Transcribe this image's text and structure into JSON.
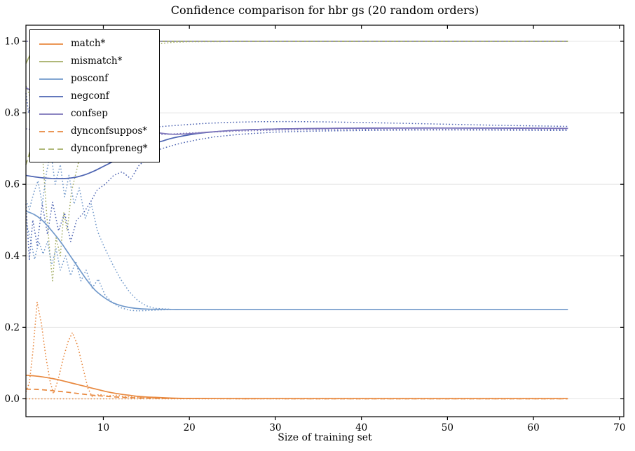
{
  "chart_data": {
    "type": "line",
    "title": "Confidence comparison for hbr gs (20 random orders)",
    "xlabel": "Size of training set",
    "ylabel": "",
    "xlim": [
      1,
      70.5
    ],
    "ylim": [
      -0.05,
      1.045
    ],
    "xticks": [
      10,
      20,
      30,
      40,
      50,
      60,
      70
    ],
    "xtick_labels": [
      "10",
      "20",
      "30",
      "40",
      "50",
      "60",
      "70"
    ],
    "yticks": [
      0.0,
      0.2,
      0.4,
      0.6,
      0.8,
      1.0
    ],
    "ytick_labels": [
      "0.0",
      "0.2",
      "0.4",
      "0.6",
      "0.8",
      "1.0"
    ],
    "grid": "horizontal",
    "gridline_color": "#e4e4e4",
    "axis_color": "#000000",
    "legend_position": "upper-left",
    "colors": {
      "orange": "#e8883e",
      "olive": "#a4ae66",
      "lightblue": "#7199cb",
      "blue": "#4d64b2",
      "purple": "#7d74ba"
    },
    "legend": [
      {
        "key": "match",
        "label": "match*",
        "color": "#e8883e",
        "dash": ""
      },
      {
        "key": "mismatch",
        "label": "mismatch*",
        "color": "#a4ae66",
        "dash": ""
      },
      {
        "key": "posconf",
        "label": "posconf",
        "color": "#7199cb",
        "dash": ""
      },
      {
        "key": "negconf",
        "label": "negconf",
        "color": "#4d64b2",
        "dash": ""
      },
      {
        "key": "confsep",
        "label": "confsep",
        "color": "#7d74ba",
        "dash": ""
      },
      {
        "key": "dynconfsuppos",
        "label": "dynconfsuppos*",
        "color": "#e8883e",
        "dash": "7 4.5"
      },
      {
        "key": "dynconfpreneg",
        "label": "dynconfpreneg*",
        "color": "#a4ae66",
        "dash": "7 4.5"
      }
    ],
    "series": [
      {
        "id": "match-band-lo",
        "color": "#e8883e",
        "dash": "1.6 2.8",
        "width": 1.5,
        "smooth": false,
        "x": [
          1,
          10,
          20,
          30,
          40,
          50,
          64
        ],
        "y": [
          0.0,
          0.0,
          0.0,
          0.0,
          0.0,
          0.0,
          0.0
        ]
      },
      {
        "id": "match-band-hi",
        "color": "#e8883e",
        "dash": "1.6 2.8",
        "width": 1.5,
        "smooth": false,
        "x": [
          1,
          1.4,
          1.8,
          2.3,
          2.8,
          3.3,
          3.8,
          4.2,
          4.7,
          5.3,
          5.9,
          6.4,
          7.0,
          7.6,
          8.2,
          8.7,
          9.5,
          10.5,
          11.5,
          12.5,
          14,
          16,
          20,
          30,
          40,
          50,
          64
        ],
        "y": [
          0.02,
          0.045,
          0.13,
          0.27,
          0.21,
          0.12,
          0.05,
          0.014,
          0.05,
          0.11,
          0.16,
          0.185,
          0.15,
          0.09,
          0.03,
          0.006,
          0.012,
          0.008,
          0.01,
          0.006,
          0.004,
          0.002,
          0.001,
          0.001,
          0.001,
          0.001,
          0.001
        ]
      },
      {
        "id": "mismatch-band-lo",
        "color": "#a4ae66",
        "dash": "1.6 2.8",
        "width": 1.5,
        "smooth": false,
        "x": [
          1,
          1.5,
          2,
          2.5,
          3,
          3.4,
          3.8,
          4.1,
          4.5,
          5.0,
          5.4,
          5.8,
          6.3,
          7.0,
          7.7,
          8.5,
          9.3,
          10,
          11,
          12,
          13,
          14,
          16,
          18,
          20,
          30,
          40,
          50,
          64
        ],
        "y": [
          0.875,
          0.845,
          0.815,
          0.74,
          0.66,
          0.52,
          0.4,
          0.33,
          0.45,
          0.4,
          0.52,
          0.47,
          0.58,
          0.65,
          0.72,
          0.79,
          0.85,
          0.895,
          0.935,
          0.958,
          0.972,
          0.982,
          0.992,
          0.997,
          0.999,
          1.0,
          1.0,
          1.0,
          1.0
        ]
      },
      {
        "id": "posconf-band-hi",
        "color": "#7199cb",
        "dash": "1.6 2.8",
        "width": 1.5,
        "smooth": false,
        "x": [
          1,
          1.4,
          1.9,
          2.4,
          2.9,
          3.4,
          3.9,
          4.4,
          5.0,
          5.5,
          6.0,
          6.6,
          7.2,
          7.9,
          8.6,
          9.3,
          10,
          11,
          12,
          13,
          14,
          15,
          16,
          18,
          20,
          64
        ],
        "y": [
          0.555,
          0.53,
          0.575,
          0.61,
          0.545,
          0.635,
          0.69,
          0.6,
          0.655,
          0.565,
          0.625,
          0.545,
          0.59,
          0.505,
          0.545,
          0.47,
          0.43,
          0.38,
          0.335,
          0.3,
          0.275,
          0.26,
          0.253,
          0.25,
          0.25,
          0.25
        ]
      },
      {
        "id": "posconf-band-lo",
        "color": "#7199cb",
        "dash": "1.6 2.8",
        "width": 1.5,
        "smooth": false,
        "x": [
          1,
          1.5,
          2.0,
          2.5,
          3.0,
          3.5,
          4.0,
          4.5,
          5.0,
          5.6,
          6.2,
          6.8,
          7.4,
          8.0,
          8.7,
          9.4,
          10.2,
          11,
          12,
          13,
          14,
          15,
          16,
          18,
          20,
          64
        ],
        "y": [
          0.495,
          0.45,
          0.39,
          0.44,
          0.405,
          0.44,
          0.375,
          0.42,
          0.36,
          0.4,
          0.345,
          0.385,
          0.33,
          0.36,
          0.31,
          0.335,
          0.29,
          0.27,
          0.255,
          0.248,
          0.246,
          0.247,
          0.248,
          0.25,
          0.25,
          0.25
        ]
      },
      {
        "id": "negconf-band-hi",
        "color": "#4d64b2",
        "dash": "1.6 2.8",
        "width": 1.5,
        "smooth": false,
        "x": [
          1,
          1.3,
          1.7,
          2.2,
          2.7,
          3.3,
          4.0,
          4.8,
          5.6,
          6.5,
          7.5,
          8.5,
          9.5,
          11,
          12.5,
          14,
          15.5,
          17,
          18,
          20,
          22,
          25,
          28,
          32,
          36,
          40,
          45,
          50,
          55,
          60,
          64
        ],
        "y": [
          0.855,
          0.8,
          0.845,
          0.78,
          0.82,
          0.77,
          0.8,
          0.765,
          0.79,
          0.755,
          0.775,
          0.75,
          0.765,
          0.755,
          0.758,
          0.756,
          0.76,
          0.762,
          0.764,
          0.7675,
          0.7705,
          0.7735,
          0.775,
          0.7755,
          0.7745,
          0.773,
          0.7705,
          0.768,
          0.7655,
          0.7635,
          0.762
        ]
      },
      {
        "id": "negconf-band-lo",
        "color": "#4d64b2",
        "dash": "1.6 2.8",
        "width": 1.5,
        "smooth": false,
        "x": [
          1,
          1.4,
          1.8,
          2.3,
          2.9,
          3.5,
          4.1,
          4.8,
          5.5,
          6.2,
          6.9,
          7.7,
          8.5,
          9.3,
          10.2,
          11.2,
          12.2,
          13.2,
          14.2,
          15.2,
          16.2,
          17.5,
          19,
          21,
          23,
          26,
          30,
          35,
          40,
          45,
          50,
          55,
          60,
          64
        ],
        "y": [
          0.545,
          0.39,
          0.5,
          0.43,
          0.545,
          0.46,
          0.55,
          0.47,
          0.52,
          0.44,
          0.5,
          0.52,
          0.55,
          0.585,
          0.6,
          0.625,
          0.635,
          0.615,
          0.655,
          0.67,
          0.695,
          0.705,
          0.715,
          0.725,
          0.733,
          0.74,
          0.746,
          0.749,
          0.7505,
          0.7515,
          0.752,
          0.7515,
          0.751,
          0.7505
        ]
      },
      {
        "id": "confsep-band-lo",
        "color": "#7d74ba",
        "dash": "1.6 2.8",
        "width": 1.5,
        "smooth": false,
        "x": [
          1,
          3,
          6,
          10,
          14,
          17,
          20,
          25,
          30,
          40,
          50,
          64
        ],
        "y": [
          0.755,
          0.75,
          0.746,
          0.742,
          0.738,
          0.7395,
          0.7435,
          0.7485,
          0.7515,
          0.7535,
          0.754,
          0.7535
        ]
      },
      {
        "id": "match",
        "color": "#e8883e",
        "dash": "",
        "width": 1.7,
        "smooth": true,
        "x": [
          1,
          2,
          3,
          4,
          5,
          6,
          7,
          8,
          9,
          10,
          11,
          12,
          13,
          14,
          15,
          16,
          18,
          20,
          25,
          30,
          40,
          50,
          64
        ],
        "y": [
          0.066,
          0.064,
          0.061,
          0.057,
          0.052,
          0.046,
          0.04,
          0.034,
          0.028,
          0.022,
          0.017,
          0.013,
          0.01,
          0.007,
          0.005,
          0.004,
          0.002,
          0.001,
          0.0005,
          0.0005,
          0.0005,
          0.0005,
          0.0005
        ]
      },
      {
        "id": "mismatch",
        "color": "#a4ae66",
        "dash": "",
        "width": 1.7,
        "smooth": true,
        "x": [
          1,
          1.5,
          2,
          2.5,
          3,
          4,
          5,
          6,
          8,
          10,
          15,
          20,
          30,
          40,
          50,
          64
        ],
        "y": [
          0.938,
          0.962,
          0.977,
          0.987,
          0.993,
          0.998,
          1.0,
          1.0,
          1.0,
          1.0,
          1.0,
          1.0,
          1.0,
          1.0,
          1.0,
          1.0
        ]
      },
      {
        "id": "posconf",
        "color": "#7199cb",
        "dash": "",
        "width": 1.7,
        "smooth": true,
        "x": [
          1,
          2,
          3,
          4,
          5,
          6,
          7,
          8,
          9,
          10,
          11,
          12,
          13,
          14,
          15,
          16,
          18,
          20,
          25,
          30,
          40,
          50,
          64
        ],
        "y": [
          0.525,
          0.515,
          0.497,
          0.47,
          0.44,
          0.405,
          0.37,
          0.335,
          0.305,
          0.285,
          0.27,
          0.261,
          0.2555,
          0.2525,
          0.251,
          0.2505,
          0.25,
          0.25,
          0.25,
          0.25,
          0.25,
          0.25,
          0.25
        ]
      },
      {
        "id": "negconf",
        "color": "#4d64b2",
        "dash": "",
        "width": 1.7,
        "smooth": true,
        "x": [
          1,
          2,
          3,
          4,
          5,
          6,
          7,
          8,
          9,
          10,
          11,
          12,
          13,
          14,
          15,
          16,
          17,
          18,
          20,
          22,
          25,
          28,
          32,
          36,
          40,
          45,
          50,
          55,
          60,
          64
        ],
        "y": [
          0.625,
          0.621,
          0.618,
          0.6165,
          0.616,
          0.617,
          0.621,
          0.628,
          0.638,
          0.65,
          0.662,
          0.674,
          0.685,
          0.696,
          0.706,
          0.715,
          0.722,
          0.729,
          0.7385,
          0.745,
          0.7505,
          0.7535,
          0.7555,
          0.7565,
          0.757,
          0.7575,
          0.7575,
          0.7572,
          0.7568,
          0.7565
        ]
      },
      {
        "id": "confsep",
        "color": "#7d74ba",
        "dash": "",
        "width": 1.7,
        "smooth": true,
        "x": [
          1,
          2,
          3,
          4,
          5,
          6,
          8,
          10,
          12,
          14,
          16,
          18,
          20,
          22,
          25,
          28,
          32,
          36,
          40,
          50,
          64
        ],
        "y": [
          0.87,
          0.857,
          0.845,
          0.833,
          0.822,
          0.812,
          0.794,
          0.778,
          0.765,
          0.754,
          0.7455,
          0.74,
          0.7415,
          0.7455,
          0.7505,
          0.7535,
          0.7555,
          0.7565,
          0.757,
          0.7575,
          0.7565
        ]
      },
      {
        "id": "dynconfsuppos",
        "color": "#e8883e",
        "dash": "7 4.5",
        "width": 1.7,
        "smooth": true,
        "x": [
          1,
          2,
          3,
          4,
          5,
          6,
          7,
          8,
          9,
          10,
          12,
          14,
          16,
          20,
          30,
          40,
          50,
          64
        ],
        "y": [
          0.027,
          0.0265,
          0.025,
          0.023,
          0.0205,
          0.018,
          0.015,
          0.012,
          0.0095,
          0.0075,
          0.0045,
          0.0025,
          0.0015,
          0.0008,
          0.0003,
          0.0002,
          0.0002,
          0.0002
        ]
      },
      {
        "id": "dynconfpreneg",
        "color": "#a4ae66",
        "dash": "7 4.5",
        "width": 1.7,
        "smooth": true,
        "x": [
          1,
          1.5,
          2,
          2.5,
          3,
          3.5,
          4,
          5,
          6,
          7,
          8,
          10,
          15,
          20,
          30,
          40,
          50,
          64
        ],
        "y": [
          0.655,
          0.695,
          0.75,
          0.8,
          0.845,
          0.88,
          0.908,
          0.946,
          0.968,
          0.982,
          0.991,
          0.998,
          1.0,
          1.0,
          1.0,
          1.0,
          1.0,
          1.0
        ]
      },
      {
        "id": "confsep-band-hi",
        "color": "#958fc0",
        "dash": "3 3.4",
        "width": 1.7,
        "smooth": false,
        "x": [
          1,
          64
        ],
        "y": [
          1.0,
          1.0
        ]
      }
    ]
  }
}
